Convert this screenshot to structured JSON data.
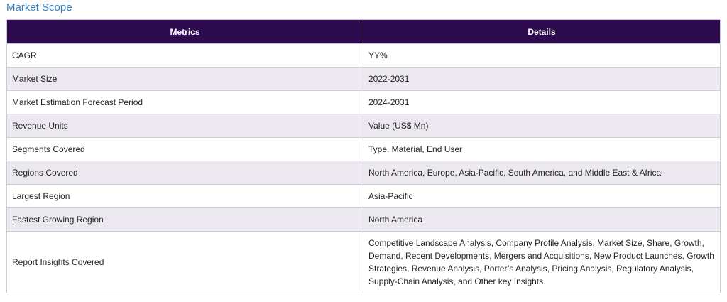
{
  "heading": "Market Scope",
  "table": {
    "headers": [
      "Metrics",
      "Details"
    ],
    "rows": [
      {
        "metric": "CAGR",
        "detail": "YY%"
      },
      {
        "metric": "Market Size",
        "detail": "2022-2031"
      },
      {
        "metric": "Market Estimation Forecast Period",
        "detail": "2024-2031"
      },
      {
        "metric": "Revenue Units",
        "detail": "Value (US$ Mn)"
      },
      {
        "metric": "Segments Covered",
        "detail": "Type, Material, End User"
      },
      {
        "metric": "Regions Covered",
        "detail": "North America, Europe, Asia-Pacific, South America, and Middle East & Africa"
      },
      {
        "metric": "Largest Region",
        "detail": "Asia-Pacific"
      },
      {
        "metric": "Fastest Growing Region",
        "detail": "North America"
      },
      {
        "metric": "Report Insights Covered",
        "detail": "Competitive Landscape Analysis, Company Profile Analysis, Market Size, Share, Growth, Demand, Recent Developments, Mergers and Acquisitions, New Product Launches, Growth Strategies, Revenue Analysis, Porter’s Analysis, Pricing Analysis, Regulatory Analysis, Supply-Chain Analysis, and Other key Insights."
      }
    ]
  },
  "colors": {
    "header_bg": "#2d0b4e",
    "header_text": "#ffffff",
    "heading_text": "#2f7fc1",
    "alt_row_bg": "#ebe8ef",
    "border": "#cfcad6"
  }
}
